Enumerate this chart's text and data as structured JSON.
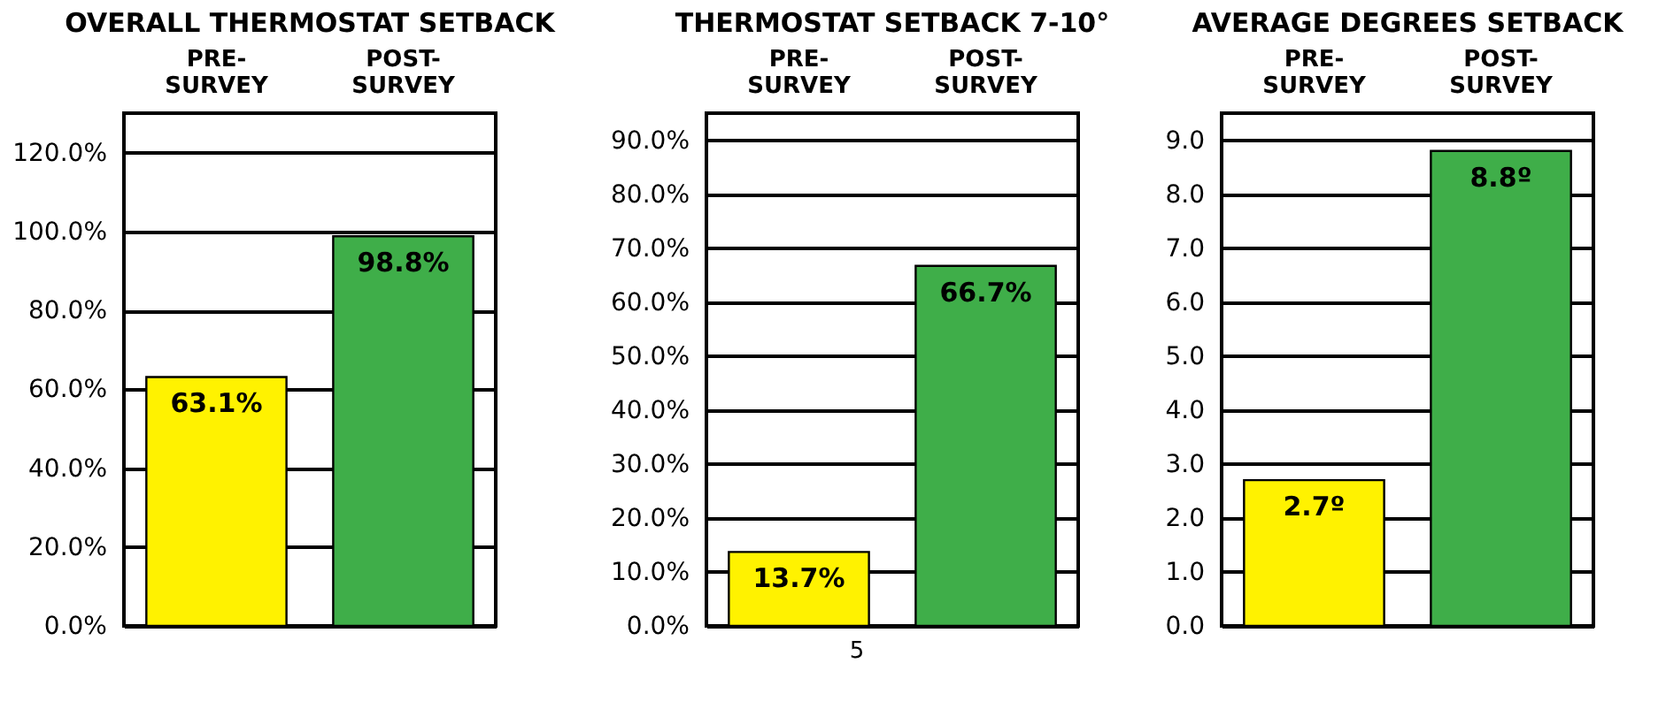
{
  "chart_data": [
    {
      "type": "bar",
      "title": "OVERALL THERMOSTAT SETBACK",
      "categories": [
        "PRE-SURVEY",
        "POST-SURVEY"
      ],
      "colors": [
        "#fff200",
        "#3fae49"
      ],
      "values": [
        63.1,
        98.8
      ],
      "value_labels": [
        "63.1%",
        "98.8%"
      ],
      "ylim": [
        0,
        130
      ],
      "yticks": [
        {
          "value": 0,
          "label": "0.0%"
        },
        {
          "value": 20,
          "label": "20.0%"
        },
        {
          "value": 40,
          "label": "40.0%"
        },
        {
          "value": 60,
          "label": "60.0%"
        },
        {
          "value": 80,
          "label": "80.0%"
        },
        {
          "value": 100,
          "label": "100.0%"
        },
        {
          "value": 120,
          "label": "120.0%"
        }
      ],
      "grid": "y"
    },
    {
      "type": "bar",
      "title": "THERMOSTAT SETBACK 7-10°",
      "categories": [
        "PRE-SURVEY",
        "POST-SURVEY"
      ],
      "colors": [
        "#fff200",
        "#3fae49"
      ],
      "values": [
        13.7,
        66.7
      ],
      "value_labels": [
        "13.7%",
        "66.7%"
      ],
      "ylim": [
        0,
        95
      ],
      "yticks": [
        {
          "value": 0,
          "label": "0.0%"
        },
        {
          "value": 10,
          "label": "10.0%"
        },
        {
          "value": 20,
          "label": "20.0%"
        },
        {
          "value": 30,
          "label": "30.0%"
        },
        {
          "value": 40,
          "label": "40.0%"
        },
        {
          "value": 50,
          "label": "50.0%"
        },
        {
          "value": 60,
          "label": "60.0%"
        },
        {
          "value": 70,
          "label": "70.0%"
        },
        {
          "value": 80,
          "label": "80.0%"
        },
        {
          "value": 90,
          "label": "90.0%"
        }
      ],
      "grid": "y",
      "annotations": [
        "5"
      ]
    },
    {
      "type": "bar",
      "title": "AVERAGE DEGREES SETBACK",
      "categories": [
        "PRE-SURVEY",
        "POST-SURVEY"
      ],
      "colors": [
        "#fff200",
        "#3fae49"
      ],
      "values": [
        2.7,
        8.8
      ],
      "value_labels": [
        "2.7º",
        "8.8º"
      ],
      "ylim": [
        0,
        9.5
      ],
      "yticks": [
        {
          "value": 0,
          "label": "0.0"
        },
        {
          "value": 1,
          "label": "1.0"
        },
        {
          "value": 2,
          "label": "2.0"
        },
        {
          "value": 3,
          "label": "3.0"
        },
        {
          "value": 4,
          "label": "4.0"
        },
        {
          "value": 5,
          "label": "5.0"
        },
        {
          "value": 6,
          "label": "6.0"
        },
        {
          "value": 7,
          "label": "7.0"
        },
        {
          "value": 8,
          "label": "8.0"
        },
        {
          "value": 9,
          "label": "9.0"
        }
      ],
      "grid": "y"
    }
  ]
}
